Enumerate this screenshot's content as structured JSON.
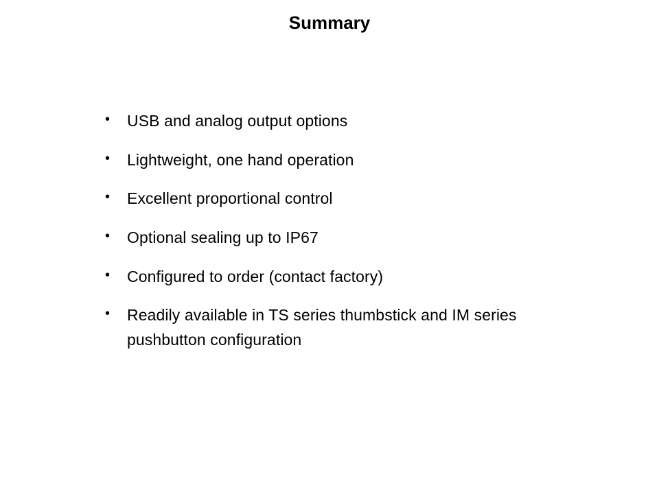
{
  "slide": {
    "title": "Summary",
    "title_fontsize": 26,
    "title_weight": "bold",
    "body_fontsize": 23,
    "background_color": "#ffffff",
    "text_color": "#000000",
    "bullet_color": "#000000",
    "line_spacing": 1.55,
    "bullets": [
      "USB and analog output options",
      "Lightweight, one hand operation",
      "Excellent proportional control",
      "Optional sealing up to IP67",
      "Configured to order (contact factory)",
      "Readily available in TS series thumbstick and IM series pushbutton configuration"
    ]
  }
}
